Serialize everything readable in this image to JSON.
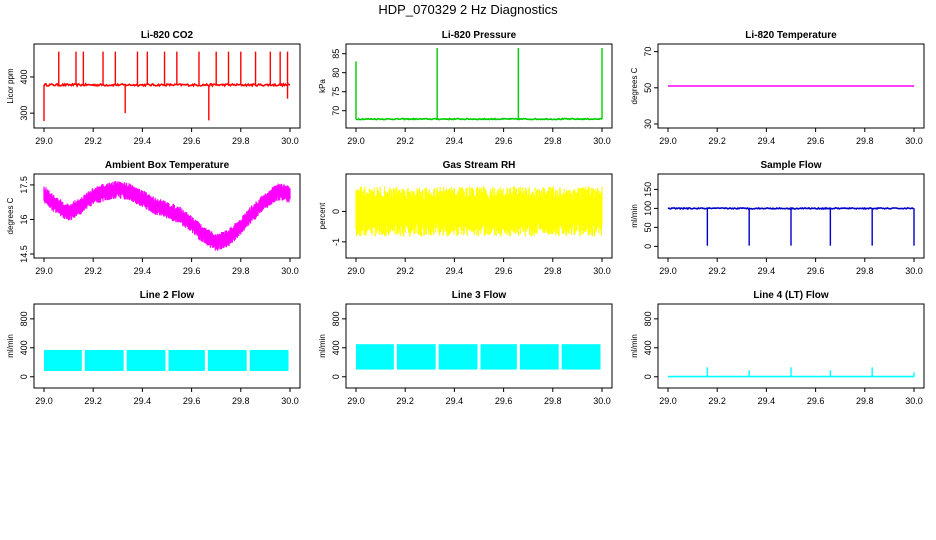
{
  "title": "HDP_070329  2 Hz Diagnostics",
  "chart_data": [
    {
      "id": "co2",
      "type": "line",
      "title": "Li-820 CO2",
      "ylabel": "Licor ppm",
      "color": "#ff0000",
      "xlim": [
        29.0,
        30.0
      ],
      "ylim": [
        270,
        480
      ],
      "xticks": [
        "29.0",
        "29.2",
        "29.4",
        "29.6",
        "29.8",
        "30.0"
      ],
      "yticks": [
        300,
        400
      ],
      "baseline": 378,
      "noise": 3,
      "spikes": [
        {
          "x": 29.06,
          "v": 470
        },
        {
          "x": 29.0,
          "v": 278
        },
        {
          "x": 29.13,
          "v": 470
        },
        {
          "x": 29.16,
          "v": 470
        },
        {
          "x": 29.24,
          "v": 470
        },
        {
          "x": 29.29,
          "v": 470
        },
        {
          "x": 29.33,
          "v": 300
        },
        {
          "x": 29.38,
          "v": 470
        },
        {
          "x": 29.42,
          "v": 470
        },
        {
          "x": 29.49,
          "v": 470
        },
        {
          "x": 29.54,
          "v": 470
        },
        {
          "x": 29.63,
          "v": 470
        },
        {
          "x": 29.67,
          "v": 280
        },
        {
          "x": 29.7,
          "v": 470
        },
        {
          "x": 29.75,
          "v": 470
        },
        {
          "x": 29.8,
          "v": 470
        },
        {
          "x": 29.86,
          "v": 470
        },
        {
          "x": 29.92,
          "v": 470
        },
        {
          "x": 29.96,
          "v": 470
        },
        {
          "x": 29.99,
          "v": 470
        },
        {
          "x": 29.99,
          "v": 340
        }
      ]
    },
    {
      "id": "pres",
      "type": "line",
      "title": "Li-820 Pressure",
      "ylabel": "kPa",
      "color": "#00cc00",
      "xlim": [
        29.0,
        30.0
      ],
      "ylim": [
        66.5,
        86.5
      ],
      "xticks": [
        "29.0",
        "29.2",
        "29.4",
        "29.6",
        "29.8",
        "30.0"
      ],
      "yticks": [
        70,
        75,
        80,
        85
      ],
      "baseline": 67.8,
      "noise": 0.15,
      "spikes": [
        {
          "x": 29.0,
          "v": 83
        },
        {
          "x": 29.33,
          "v": 86.5
        },
        {
          "x": 29.66,
          "v": 86.5
        },
        {
          "x": 30.0,
          "v": 86.5
        }
      ]
    },
    {
      "id": "temp",
      "type": "line",
      "title": "Li-820 Temperature",
      "ylabel": "degrees C",
      "color": "#ff00ff",
      "xlim": [
        29.0,
        30.0
      ],
      "ylim": [
        30,
        72
      ],
      "xticks": [
        "29.0",
        "29.2",
        "29.4",
        "29.6",
        "29.8",
        "30.0"
      ],
      "yticks": [
        30,
        50,
        70
      ],
      "baseline": 51,
      "noise": 0,
      "spikes": []
    },
    {
      "id": "ambient",
      "type": "band",
      "title": "Ambient Box Temperature",
      "ylabel": "degrees C",
      "color": "#ff00ff",
      "xlim": [
        29.0,
        30.0
      ],
      "ylim": [
        14.5,
        17.8
      ],
      "xticks": [
        "29.0",
        "29.2",
        "29.4",
        "29.6",
        "29.8",
        "30.0"
      ],
      "yticks": [
        14.5,
        16.0,
        17.5
      ],
      "x": [
        29.0,
        29.05,
        29.1,
        29.15,
        29.2,
        29.25,
        29.3,
        29.35,
        29.4,
        29.45,
        29.5,
        29.55,
        29.6,
        29.65,
        29.7,
        29.75,
        29.8,
        29.85,
        29.9,
        29.95,
        30.0
      ],
      "y": [
        17.1,
        16.6,
        16.3,
        16.6,
        17.0,
        17.2,
        17.3,
        17.2,
        16.9,
        16.6,
        16.4,
        16.2,
        15.8,
        15.3,
        15.0,
        15.2,
        15.7,
        16.3,
        16.8,
        17.2,
        17.1
      ],
      "spread": 0.35
    },
    {
      "id": "rh",
      "type": "band",
      "title": "Gas Stream RH",
      "ylabel": "percent",
      "color": "#ffff00",
      "xlim": [
        29.0,
        30.0
      ],
      "ylim": [
        -1.4,
        1.1
      ],
      "xticks": [
        "29.0",
        "29.2",
        "29.4",
        "29.6",
        "29.8",
        "30.0"
      ],
      "yticks": [
        -1.0,
        0.0
      ],
      "x": [
        29.0,
        30.0
      ],
      "y": [
        0.0,
        0.0
      ],
      "spread": 0.75
    },
    {
      "id": "sample",
      "type": "line",
      "title": "Sample Flow",
      "ylabel": "ml/min",
      "color": "#0000cc",
      "xlim": [
        29.0,
        30.0
      ],
      "ylim": [
        -20,
        180
      ],
      "xticks": [
        "29.0",
        "29.2",
        "29.4",
        "29.6",
        "29.8",
        "30.0"
      ],
      "yticks": [
        0,
        50,
        100,
        150
      ],
      "baseline": 100,
      "noise": 1.5,
      "spikes": [
        {
          "x": 29.16,
          "v": 2
        },
        {
          "x": 29.33,
          "v": 2
        },
        {
          "x": 29.5,
          "v": 2
        },
        {
          "x": 29.66,
          "v": 2
        },
        {
          "x": 29.83,
          "v": 2
        },
        {
          "x": 30.0,
          "v": 2
        }
      ]
    },
    {
      "id": "line2",
      "type": "blocks",
      "title": "Line 2 Flow",
      "ylabel": "ml/min",
      "color": "#00ffff",
      "xlim": [
        29.0,
        30.0
      ],
      "ylim": [
        -100,
        950
      ],
      "xticks": [
        "29.0",
        "29.2",
        "29.4",
        "29.6",
        "29.8",
        "30.0"
      ],
      "yticks": [
        0,
        400,
        800
      ],
      "low": 80,
      "high": 370,
      "gaps": [
        29.16,
        29.33,
        29.5,
        29.66,
        29.83
      ]
    },
    {
      "id": "line3",
      "type": "blocks",
      "title": "Line 3 Flow",
      "ylabel": "ml/min",
      "color": "#00ffff",
      "xlim": [
        29.0,
        30.0
      ],
      "ylim": [
        -100,
        950
      ],
      "xticks": [
        "29.0",
        "29.2",
        "29.4",
        "29.6",
        "29.8",
        "30.0"
      ],
      "yticks": [
        0,
        400,
        800
      ],
      "low": 100,
      "high": 450,
      "gaps": [
        29.16,
        29.33,
        29.5,
        29.66,
        29.83
      ]
    },
    {
      "id": "line4",
      "type": "line",
      "title": "Line 4 (LT) Flow",
      "ylabel": "ml/min",
      "color": "#00ffff",
      "xlim": [
        29.0,
        30.0
      ],
      "ylim": [
        -100,
        950
      ],
      "xticks": [
        "29.0",
        "29.2",
        "29.4",
        "29.6",
        "29.8",
        "30.0"
      ],
      "yticks": [
        0,
        400,
        800
      ],
      "baseline": 2,
      "noise": 0,
      "spikes": [
        {
          "x": 29.16,
          "v": 130
        },
        {
          "x": 29.33,
          "v": 90
        },
        {
          "x": 29.5,
          "v": 130
        },
        {
          "x": 29.66,
          "v": 90
        },
        {
          "x": 29.83,
          "v": 130
        },
        {
          "x": 30.0,
          "v": 60
        }
      ]
    }
  ]
}
